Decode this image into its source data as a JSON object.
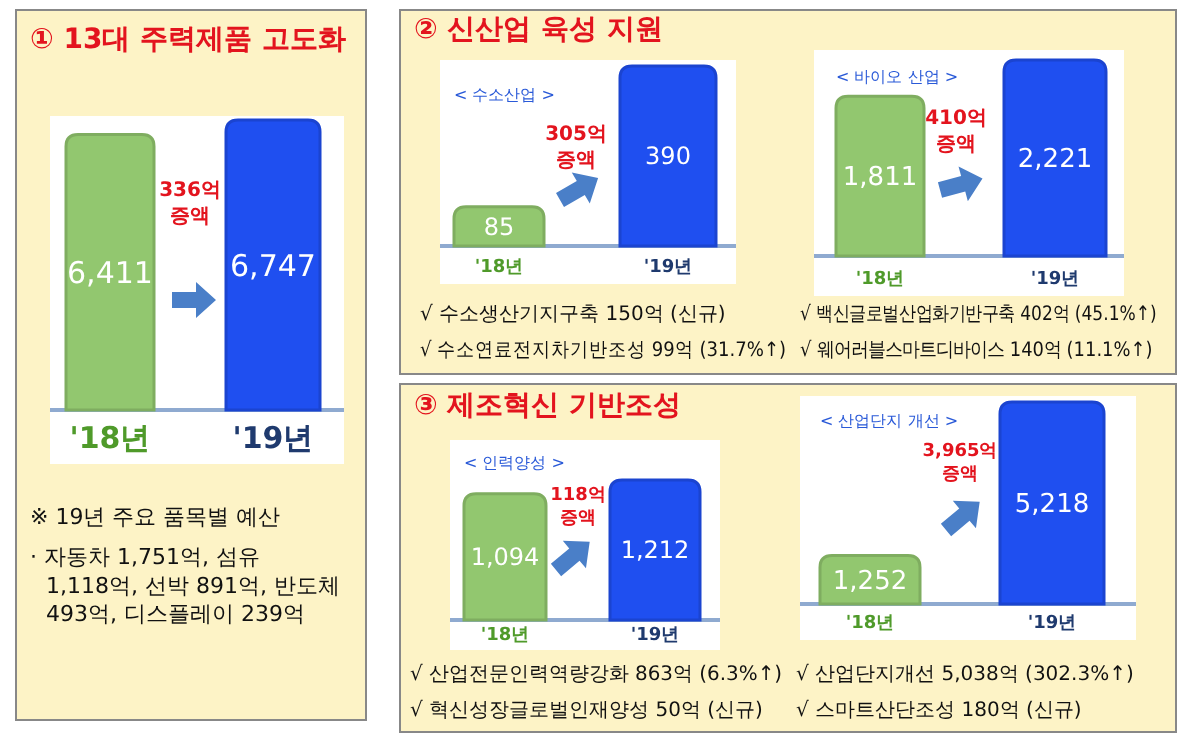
{
  "chart_data": [
    {
      "type": "bar",
      "title": "① 13대 주력제품 고도화",
      "categories": [
        "'18년",
        "'19년"
      ],
      "values": [
        6411,
        6747
      ],
      "value_labels": [
        "6,411",
        "6,747"
      ],
      "colors": [
        "#92c76f",
        "#1f4ff0"
      ],
      "data_labels": true,
      "annotations": [
        "336억 증액",
        "※ 19년 주요 품목별 예산",
        "· 자동차 1,751억, 섬유 1,118억, 선박 891억, 반도체 493억, 디스플레이 239억"
      ]
    },
    {
      "type": "bar",
      "title": "② 신산업 육성 지원",
      "subtitle": "< 수소산업 >",
      "categories": [
        "'18년",
        "'19년"
      ],
      "values": [
        85,
        390
      ],
      "value_labels": [
        "85",
        "390"
      ],
      "colors": [
        "#92c76f",
        "#1f4ff0"
      ],
      "data_labels": true,
      "annotations": [
        "305억 증액",
        "√ 수소생산기지구축 150억 (신규)",
        "√ 수소연료전지차기반조성 99억 (31.7%↑)"
      ]
    },
    {
      "type": "bar",
      "subtitle": "< 바이오 산업 >",
      "categories": [
        "'18년",
        "'19년"
      ],
      "values": [
        1811,
        2221
      ],
      "value_labels": [
        "1,811",
        "2,221"
      ],
      "colors": [
        "#92c76f",
        "#1f4ff0"
      ],
      "data_labels": true,
      "annotations": [
        "410억 증액",
        "√ 백신글로벌산업화기반구축 402억 (45.1%↑)",
        "√ 웨어러블스마트디바이스 140억 (11.1%↑)"
      ]
    },
    {
      "type": "bar",
      "title": "③ 제조혁신 기반조성",
      "subtitle": "< 인력양성 >",
      "categories": [
        "'18년",
        "'19년"
      ],
      "values": [
        1094,
        1212
      ],
      "value_labels": [
        "1,094",
        "1,212"
      ],
      "colors": [
        "#92c76f",
        "#1f4ff0"
      ],
      "data_labels": true,
      "annotations": [
        "118억 증액",
        "√ 산업전문인력역량강화 863억 (6.3%↑)",
        "√ 혁신성장글로벌인재양성 50억 (신규)"
      ]
    },
    {
      "type": "bar",
      "subtitle": "< 산업단지 개선 >",
      "categories": [
        "'18년",
        "'19년"
      ],
      "values": [
        1252,
        5218
      ],
      "value_labels": [
        "1,252",
        "5,218"
      ],
      "colors": [
        "#92c76f",
        "#1f4ff0"
      ],
      "data_labels": true,
      "annotations": [
        "3,965억 증액",
        "√ 산업단지개선 5,038억 (302.3%↑)",
        "√ 스마트산단조성 180억 (신규)"
      ]
    }
  ]
}
